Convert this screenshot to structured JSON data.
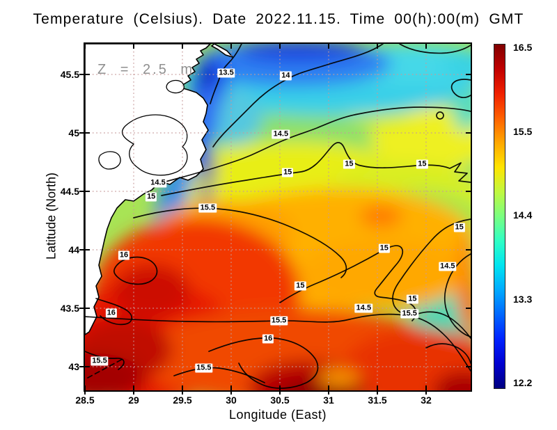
{
  "title": "Temperature (Celsius). Date 2022.11.15. Time 00(h):00(m) GMT",
  "annotation": {
    "depth_label": "Z = 2.5 m"
  },
  "axes": {
    "x": {
      "label": "Longitude (East)",
      "ticks": [
        "28.5",
        "29",
        "29.5",
        "30",
        "30.5",
        "31",
        "31.5",
        "32"
      ],
      "range": [
        28.5,
        32.46
      ]
    },
    "y": {
      "label": "Latitude (North)",
      "ticks": [
        "45.5",
        "45",
        "44.5",
        "44",
        "43.5",
        "43"
      ],
      "range": [
        42.8,
        45.76
      ]
    }
  },
  "colorbar": {
    "tick_labels": [
      "16.5",
      "15.5",
      "14.4",
      "13.3",
      "12.2"
    ],
    "min": 12.2,
    "max": 16.5,
    "gradient_stops_bottom_to_top": [
      "#00007f",
      "#0000d0",
      "#0022ff",
      "#0066ff",
      "#00aaff",
      "#00e4f0",
      "#30ffc4",
      "#7aff80",
      "#c0f840",
      "#ffe400",
      "#ffa800",
      "#ff6000",
      "#f02000",
      "#c00000",
      "#800000"
    ]
  },
  "chart_data": {
    "type": "heatmap",
    "variable": "Sea water temperature (Celsius) at depth Z = 2.5 m",
    "date": "2022.11.15",
    "time": "00(h):00(m) GMT",
    "lon_range": [
      28.5,
      32.46
    ],
    "lat_range": [
      42.8,
      45.76
    ],
    "grid_step_deg": 0.5,
    "grid_on": true,
    "contour_levels": [
      13.5,
      14,
      14.5,
      15,
      15.5,
      16
    ],
    "contour_labels": [
      {
        "value": "13.5",
        "lon": 29.95,
        "lat": 45.51
      },
      {
        "value": "14",
        "lon": 30.56,
        "lat": 45.49
      },
      {
        "value": "14.5",
        "lon": 30.51,
        "lat": 44.99
      },
      {
        "value": "15",
        "lon": 31.21,
        "lat": 44.73
      },
      {
        "value": "15",
        "lon": 31.96,
        "lat": 44.73
      },
      {
        "value": "15",
        "lon": 30.58,
        "lat": 44.66
      },
      {
        "value": "14.5",
        "lon": 29.25,
        "lat": 44.57
      },
      {
        "value": "15",
        "lon": 29.18,
        "lat": 44.45
      },
      {
        "value": "15.5",
        "lon": 29.76,
        "lat": 44.36
      },
      {
        "value": "15",
        "lon": 32.34,
        "lat": 44.19
      },
      {
        "value": "15",
        "lon": 31.57,
        "lat": 44.01
      },
      {
        "value": "16",
        "lon": 28.9,
        "lat": 43.95
      },
      {
        "value": "14.5",
        "lon": 32.22,
        "lat": 43.86
      },
      {
        "value": "15",
        "lon": 30.71,
        "lat": 43.69
      },
      {
        "value": "15",
        "lon": 31.86,
        "lat": 43.58
      },
      {
        "value": "14.5",
        "lon": 31.36,
        "lat": 43.5
      },
      {
        "value": "16",
        "lon": 28.77,
        "lat": 43.46
      },
      {
        "value": "15.5",
        "lon": 31.83,
        "lat": 43.45
      },
      {
        "value": "15.5",
        "lon": 30.49,
        "lat": 43.39
      },
      {
        "value": "16",
        "lon": 30.38,
        "lat": 43.24
      },
      {
        "value": "15.5",
        "lon": 28.65,
        "lat": 43.05
      },
      {
        "value": "15.5",
        "lon": 29.72,
        "lat": 42.99
      }
    ],
    "regions": [
      {
        "area": "northwest coastal strip along Danube delta",
        "temp_c": "12.2-13.5 (blue, coldest)"
      },
      {
        "area": "northern band near 45.5N",
        "temp_c": "13.5-14 (blue-cyan)"
      },
      {
        "area": "northeast / eastern half",
        "temp_c": "14-14.5 (green with yellow patches)"
      },
      {
        "area": "central band",
        "temp_c": "15 (yellow-orange)"
      },
      {
        "area": "cool pools near 31.3E 43.6N and 32.2E 43.9N",
        "temp_c": "14.5 (teal)"
      },
      {
        "area": "southwest quadrant and southern edge",
        "temp_c": "15.5-16+ (red to dark red, warmest)"
      }
    ]
  }
}
